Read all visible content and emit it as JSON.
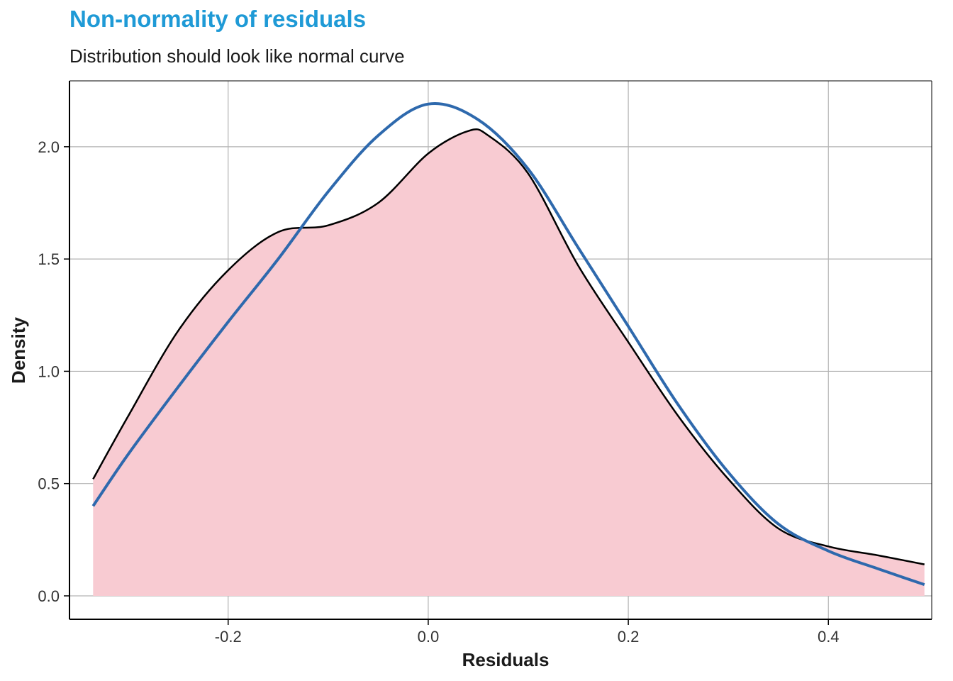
{
  "colors": {
    "title": "#1f9ad6",
    "density_fill": "#f8cbd2",
    "density_line": "#000000",
    "normal_line": "#2e69ad",
    "grid": "#b3b3b3",
    "axis": "#000000"
  },
  "chart_data": {
    "type": "area",
    "title": "Non-normality of residuals",
    "subtitle": "Distribution should look like normal curve",
    "xlabel": "Residuals",
    "ylabel": "Density",
    "xlim": [
      -0.3586,
      0.5033
    ],
    "ylim": [
      -0.1043,
      2.2933
    ],
    "x_ticks": [
      -0.2,
      0.0,
      0.2,
      0.4
    ],
    "x_tick_labels": [
      "-0.2",
      "0.0",
      "0.2",
      "0.4"
    ],
    "y_ticks": [
      0.0,
      0.5,
      1.0,
      1.5,
      2.0
    ],
    "y_tick_labels": [
      "0.0",
      "0.5",
      "1.0",
      "1.5",
      "2.0"
    ],
    "grid": true,
    "series": [
      {
        "kind": "density",
        "x": [
          -0.335,
          -0.3,
          -0.25,
          -0.2,
          -0.15,
          -0.1,
          -0.05,
          0.0,
          0.04,
          0.06,
          0.1,
          0.15,
          0.2,
          0.25,
          0.3,
          0.35,
          0.4,
          0.45,
          0.496
        ],
        "y": [
          0.52,
          0.8,
          1.18,
          1.45,
          1.62,
          1.65,
          1.75,
          1.97,
          2.07,
          2.05,
          1.88,
          1.47,
          1.13,
          0.8,
          0.52,
          0.3,
          0.22,
          0.18,
          0.14
        ]
      },
      {
        "kind": "normal",
        "x": [
          -0.335,
          -0.3,
          -0.25,
          -0.2,
          -0.15,
          -0.1,
          -0.05,
          0.0,
          0.05,
          0.1,
          0.15,
          0.2,
          0.25,
          0.3,
          0.35,
          0.4,
          0.45,
          0.496
        ],
        "y": [
          0.4,
          0.63,
          0.93,
          1.22,
          1.5,
          1.8,
          2.05,
          2.19,
          2.12,
          1.9,
          1.55,
          1.2,
          0.85,
          0.55,
          0.32,
          0.2,
          0.12,
          0.05
        ]
      }
    ]
  }
}
